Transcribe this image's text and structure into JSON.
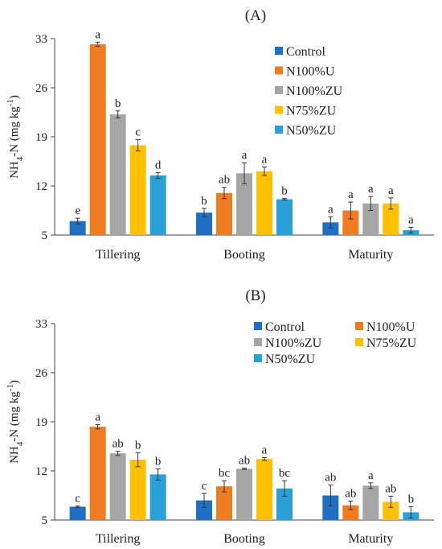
{
  "chart_data": [
    {
      "type": "bar",
      "panel_label": "(A)",
      "ylabel_main": "NH",
      "ylabel_sub": "4",
      "ylabel_mid": "-N (mg kg",
      "ylabel_sup": "-1",
      "ylabel_end": ")",
      "ylim": [
        5,
        33
      ],
      "yticks": [
        "5",
        "12",
        "19",
        "26",
        "33"
      ],
      "grid": false,
      "legend_position": "top-right",
      "legend_columns": 1,
      "categories": [
        "Tillering",
        "Booting",
        "Maturity"
      ],
      "series": [
        {
          "name": "Control",
          "color": "#1f6fc4",
          "values": [
            7.0,
            8.2,
            6.8
          ],
          "errors": [
            0.4,
            0.6,
            0.8
          ],
          "labels": [
            "e",
            "b",
            "a"
          ]
        },
        {
          "name": "N100%U",
          "color": "#f07c22",
          "values": [
            32.2,
            11.0,
            8.5
          ],
          "errors": [
            0.3,
            0.8,
            1.2
          ],
          "labels": [
            "a",
            "ab",
            "a"
          ]
        },
        {
          "name": "N100%ZU",
          "color": "#a6a6a6",
          "values": [
            22.2,
            13.8,
            9.5
          ],
          "errors": [
            0.5,
            1.5,
            1.0
          ],
          "labels": [
            "b",
            "a",
            "a"
          ]
        },
        {
          "name": "N75%ZU",
          "color": "#ffc000",
          "values": [
            17.8,
            14.1,
            9.5
          ],
          "errors": [
            0.8,
            0.6,
            0.8
          ],
          "labels": [
            "c",
            "a",
            "a"
          ]
        },
        {
          "name": "N50%ZU",
          "color": "#2a9fd8",
          "values": [
            13.5,
            10.1,
            5.7
          ],
          "errors": [
            0.4,
            0.1,
            0.4
          ],
          "labels": [
            "d",
            "b",
            "a"
          ]
        }
      ]
    },
    {
      "type": "bar",
      "panel_label": "(B)",
      "ylabel_main": "NH",
      "ylabel_sub": "4",
      "ylabel_mid": "-N (mg kg",
      "ylabel_sup": "-1",
      "ylabel_end": ")",
      "ylim": [
        5,
        33
      ],
      "yticks": [
        "5",
        "12",
        "19",
        "26",
        "33"
      ],
      "grid": false,
      "legend_position": "top-right",
      "legend_columns": 2,
      "categories": [
        "Tillering",
        "Booting",
        "Maturity"
      ],
      "series": [
        {
          "name": "Control",
          "color": "#1f6fc4",
          "values": [
            6.9,
            7.8,
            8.5
          ],
          "errors": [
            0.1,
            1.0,
            1.5
          ],
          "labels": [
            "c",
            "c",
            "ab"
          ]
        },
        {
          "name": "N100%U",
          "color": "#f07c22",
          "values": [
            18.3,
            9.8,
            7.1
          ],
          "errors": [
            0.3,
            0.8,
            0.6
          ],
          "labels": [
            "a",
            "bc",
            "ab"
          ]
        },
        {
          "name": "N100%ZU",
          "color": "#a6a6a6",
          "values": [
            14.5,
            12.3,
            9.9
          ],
          "errors": [
            0.3,
            0.1,
            0.4
          ],
          "labels": [
            "ab",
            "ab",
            "a"
          ]
        },
        {
          "name": "N75%ZU",
          "color": "#ffc000",
          "values": [
            13.6,
            13.7,
            7.6
          ],
          "errors": [
            1.0,
            0.2,
            0.8
          ],
          "labels": [
            "b",
            "a",
            "ab"
          ]
        },
        {
          "name": "N50%ZU",
          "color": "#2a9fd8",
          "values": [
            11.5,
            9.5,
            6.1
          ],
          "errors": [
            0.8,
            1.1,
            0.8
          ],
          "labels": [
            "b",
            "bc",
            "b"
          ]
        }
      ]
    }
  ]
}
